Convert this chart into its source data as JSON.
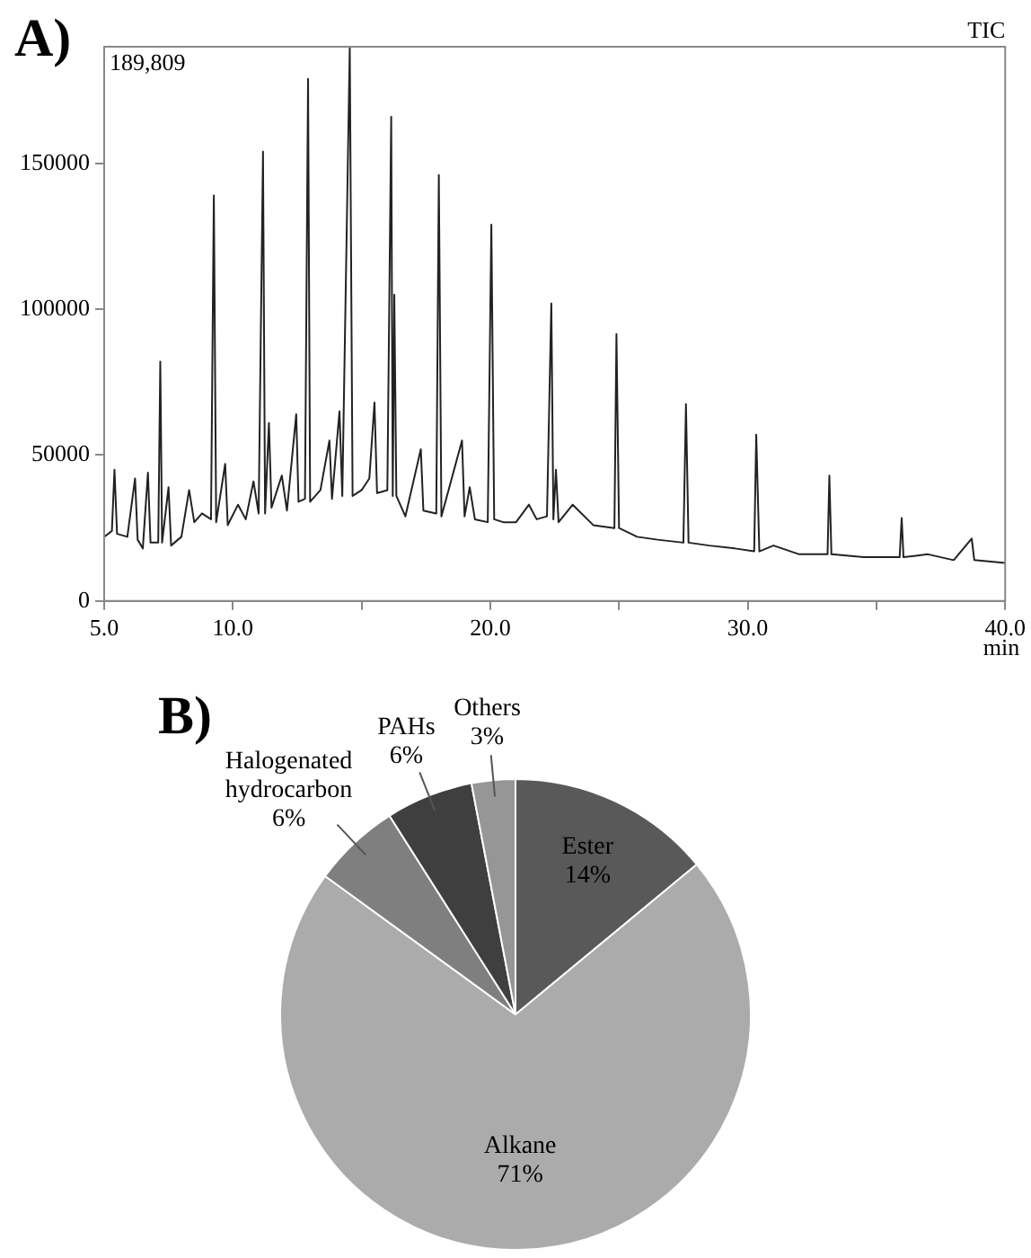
{
  "chart_data": [
    {
      "type": "line",
      "title": "A)",
      "xlabel": "min",
      "annotations": [
        "189,809",
        "TIC"
      ],
      "xlim": [
        5,
        40
      ],
      "ylim": [
        0,
        190000
      ],
      "xticks": [
        {
          "value": 5,
          "label": "5.0"
        },
        {
          "value": 10,
          "label": "10.0"
        },
        {
          "value": 15,
          "label": null
        },
        {
          "value": 20,
          "label": "20.0"
        },
        {
          "value": 25,
          "label": null
        },
        {
          "value": 30,
          "label": "30.0"
        },
        {
          "value": 35,
          "label": null
        },
        {
          "value": 40,
          "label": "40.0"
        }
      ],
      "yticks": [
        0,
        50000,
        100000,
        150000
      ],
      "grid": false,
      "legend": false,
      "marker": "none",
      "line_style": "solid",
      "series": [
        {
          "color": "#222222",
          "x": [
            5.0,
            5.3,
            5.4,
            5.5,
            5.9,
            6.2,
            6.3,
            6.5,
            6.7,
            6.8,
            7.1,
            7.18,
            7.25,
            7.5,
            7.6,
            8.0,
            8.3,
            8.5,
            8.8,
            9.15,
            9.26,
            9.35,
            9.7,
            9.8,
            10.2,
            10.5,
            10.8,
            11.0,
            11.17,
            11.25,
            11.4,
            11.5,
            11.9,
            12.1,
            12.46,
            12.55,
            12.8,
            12.92,
            13.0,
            13.4,
            13.75,
            13.85,
            14.14,
            14.25,
            14.54,
            14.65,
            15.0,
            15.3,
            15.5,
            15.6,
            16.0,
            16.15,
            16.21,
            16.27,
            16.35,
            16.7,
            17.3,
            17.4,
            17.9,
            18.0,
            18.1,
            18.9,
            19.0,
            19.2,
            19.4,
            19.9,
            20.04,
            20.15,
            20.5,
            21.0,
            21.5,
            21.8,
            22.2,
            22.37,
            22.45,
            22.55,
            22.65,
            23.2,
            24.0,
            24.82,
            24.9,
            25.0,
            25.7,
            26.5,
            27.5,
            27.6,
            27.7,
            28.5,
            29.5,
            30.25,
            30.33,
            30.45,
            31.0,
            32.0,
            33.1,
            33.17,
            33.25,
            34.5,
            35.9,
            35.98,
            36.05,
            37.0,
            38.0,
            38.7,
            38.8,
            40.0
          ],
          "values": [
            22000,
            24000,
            45000,
            23000,
            22000,
            42000,
            21000,
            18000,
            44000,
            20000,
            20000,
            82000,
            20000,
            39000,
            19000,
            22000,
            38000,
            27000,
            30000,
            28000,
            139000,
            27000,
            47000,
            26000,
            33000,
            28000,
            41000,
            30000,
            154000,
            30000,
            61000,
            32000,
            43000,
            31000,
            64000,
            34000,
            35000,
            179000,
            34000,
            38000,
            55000,
            35000,
            65000,
            36000,
            189809,
            36000,
            38000,
            42000,
            68000,
            37000,
            38000,
            166000,
            36000,
            105000,
            36000,
            29000,
            52000,
            31000,
            30000,
            146000,
            29000,
            55000,
            29000,
            39000,
            28000,
            27000,
            129000,
            28000,
            27000,
            27000,
            33000,
            28000,
            29000,
            102000,
            28000,
            45000,
            27000,
            33000,
            26000,
            25000,
            91500,
            25000,
            22000,
            21000,
            20000,
            67500,
            20000,
            19000,
            18000,
            17000,
            57000,
            17000,
            19000,
            16000,
            16000,
            43000,
            16000,
            15000,
            15000,
            28400,
            15000,
            16000,
            14000,
            21400,
            14000,
            13000
          ]
        }
      ]
    },
    {
      "type": "pie",
      "title": "B)",
      "legend": false,
      "categories": [
        "Ester",
        "Alkane",
        "Halogenated hydrocarbon",
        "PAHs",
        "Others"
      ],
      "values": [
        14,
        71,
        6,
        6,
        3
      ],
      "colors": [
        "#595959",
        "#ababab",
        "#7f7f7f",
        "#3f3f3f",
        "#969696"
      ],
      "value_labels": [
        "14%",
        "71%",
        "6%",
        "6%",
        "3%"
      ]
    }
  ]
}
